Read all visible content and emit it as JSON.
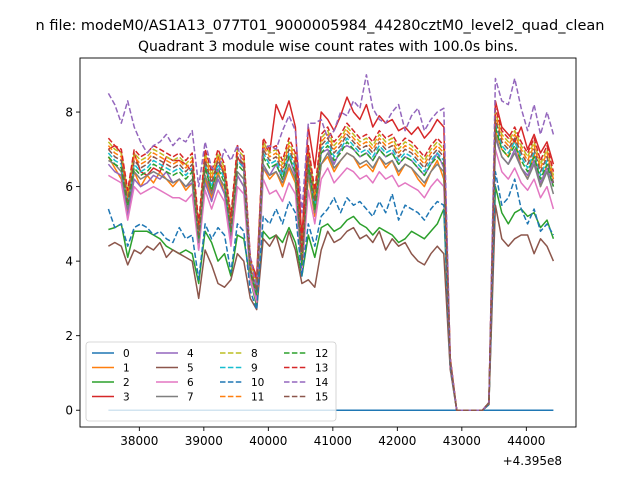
{
  "figure": {
    "suptitle": "n file: modeM0/AS1A13_077T01_9000005984_44280cztM0_level2_quad_clean",
    "title": "Quadrant 3 module wise count rates with 100.0s bins.",
    "offset_label": "+4.395e8"
  },
  "chart_data": {
    "type": "line",
    "title": "Quadrant 3 module wise count rates with 100.0s bins.",
    "xlabel": "",
    "ylabel": "",
    "x_offset": 439500000,
    "xlim": [
      37080,
      44770
    ],
    "ylim": [
      -0.45,
      9.45
    ],
    "x_ticks": [
      38000,
      39000,
      40000,
      41000,
      42000,
      43000,
      44000
    ],
    "y_ticks": [
      0,
      2,
      4,
      6,
      8
    ],
    "grid": false,
    "legend": {
      "placement": "lower-left",
      "columns": 4
    },
    "x_start": 37520,
    "x_step": 100,
    "series": [
      {
        "name": "0",
        "color": "#1f77b4",
        "dash": "solid",
        "values": [
          0,
          0,
          0,
          0,
          0,
          0,
          0,
          0,
          0,
          0,
          0,
          0,
          0,
          0,
          0,
          0,
          0,
          0,
          0,
          0,
          0,
          0,
          0,
          0,
          0,
          0,
          0,
          0,
          0,
          0,
          0,
          0,
          0,
          0,
          0,
          0,
          0,
          0,
          0,
          0,
          0,
          0,
          0,
          0,
          0,
          0,
          0,
          0,
          0,
          0,
          0,
          0,
          0,
          0,
          0,
          0,
          0,
          0,
          0,
          0,
          0,
          0,
          0,
          0,
          0,
          0,
          0,
          0,
          0,
          0
        ]
      },
      {
        "name": "1",
        "color": "#ff7f0e",
        "dash": "solid",
        "values": [
          6.8,
          6.5,
          6.2,
          5.3,
          6.4,
          6.0,
          6.3,
          6.1,
          6.4,
          6.2,
          6.0,
          6.2,
          5.9,
          6.1,
          4.4,
          6.2,
          5.7,
          6.4,
          5.8,
          4.7,
          6.3,
          6.0,
          3.6,
          3.0,
          6.5,
          6.2,
          6.4,
          6.0,
          6.5,
          6.1,
          3.9,
          6.3,
          5.2,
          6.6,
          6.8,
          6.4,
          6.7,
          6.9,
          6.8,
          6.5,
          6.6,
          6.4,
          6.8,
          6.5,
          6.7,
          6.3,
          6.6,
          6.5,
          6.2,
          6.0,
          6.4,
          6.7,
          6.2,
          1.3,
          0,
          0,
          0,
          0,
          0,
          0.2,
          7.5,
          7.0,
          6.8,
          7.3,
          6.5,
          6.2,
          6.9,
          6.0,
          6.6,
          6.3
        ]
      },
      {
        "name": "2",
        "color": "#2ca02c",
        "dash": "solid",
        "values": [
          4.85,
          4.9,
          5.0,
          4.1,
          4.8,
          4.8,
          4.8,
          4.7,
          4.6,
          4.4,
          4.3,
          4.2,
          4.3,
          4.2,
          3.4,
          4.8,
          4.5,
          4.0,
          4.2,
          3.6,
          4.7,
          4.6,
          3.5,
          2.8,
          4.8,
          4.6,
          4.7,
          4.5,
          4.9,
          4.5,
          3.6,
          4.7,
          4.1,
          4.9,
          5.0,
          4.8,
          4.9,
          5.1,
          5.2,
          5.0,
          4.9,
          4.7,
          4.9,
          4.8,
          4.7,
          4.5,
          4.6,
          4.8,
          4.7,
          4.6,
          4.8,
          5.0,
          5.4,
          1.2,
          0,
          0,
          0,
          0,
          0,
          0.15,
          6.0,
          5.3,
          5.0,
          5.3,
          5.4,
          5.2,
          5.3,
          4.9,
          5.1,
          4.6
        ]
      },
      {
        "name": "3",
        "color": "#d62728",
        "dash": "solid",
        "values": [
          7.0,
          7.1,
          6.9,
          5.8,
          6.9,
          6.4,
          6.3,
          6.5,
          6.4,
          6.8,
          6.7,
          6.7,
          6.6,
          6.4,
          4.6,
          6.6,
          5.8,
          6.8,
          6.3,
          5.0,
          6.8,
          6.5,
          4.0,
          3.6,
          7.2,
          6.9,
          8.2,
          7.8,
          8.3,
          7.6,
          4.6,
          7.6,
          6.5,
          8.0,
          7.8,
          7.5,
          7.9,
          8.4,
          8.0,
          7.8,
          8.2,
          7.6,
          7.9,
          7.7,
          7.8,
          7.5,
          7.6,
          7.4,
          7.6,
          7.3,
          7.5,
          7.8,
          7.6,
          1.4,
          0,
          0,
          0,
          0,
          0,
          0.2,
          8.3,
          7.6,
          7.4,
          7.2,
          7.6,
          7.0,
          7.4,
          6.9,
          7.2,
          6.6
        ]
      },
      {
        "name": "4",
        "color": "#9467bd",
        "dash": "solid",
        "values": [
          6.6,
          6.4,
          6.3,
          5.2,
          6.2,
          6.0,
          6.1,
          6.3,
          6.2,
          6.4,
          6.1,
          6.2,
          6.0,
          6.1,
          4.3,
          6.1,
          5.6,
          6.2,
          5.8,
          4.6,
          6.3,
          6.0,
          3.5,
          3.0,
          6.5,
          6.3,
          6.6,
          6.2,
          6.8,
          6.3,
          3.8,
          6.5,
          5.4,
          6.9,
          7.0,
          6.6,
          7.0,
          7.1,
          7.0,
          6.8,
          6.9,
          6.7,
          7.0,
          6.8,
          6.9,
          6.6,
          6.8,
          6.7,
          6.5,
          6.3,
          6.6,
          6.9,
          6.5,
          1.3,
          0,
          0,
          0,
          0,
          0,
          0.2,
          7.3,
          6.8,
          6.6,
          7.0,
          6.5,
          6.3,
          6.7,
          6.1,
          6.5,
          6.0
        ]
      },
      {
        "name": "5",
        "color": "#8c564b",
        "dash": "solid",
        "values": [
          4.4,
          4.5,
          4.4,
          3.9,
          4.3,
          4.2,
          4.4,
          4.3,
          4.5,
          4.1,
          4.3,
          4.2,
          4.1,
          4.0,
          3.0,
          4.3,
          3.9,
          3.4,
          3.3,
          3.5,
          4.2,
          4.0,
          3.0,
          2.7,
          4.6,
          4.4,
          4.7,
          4.1,
          4.8,
          4.3,
          3.4,
          3.5,
          3.3,
          4.3,
          4.8,
          4.5,
          4.6,
          4.8,
          4.9,
          4.6,
          4.7,
          4.5,
          4.8,
          4.3,
          4.6,
          4.4,
          4.5,
          4.2,
          4.0,
          3.9,
          4.2,
          4.4,
          4.2,
          1.1,
          0,
          0,
          0,
          0,
          0,
          0.15,
          5.5,
          4.6,
          4.4,
          4.6,
          4.7,
          4.7,
          4.2,
          4.6,
          4.4,
          4.0
        ]
      },
      {
        "name": "6",
        "color": "#e377c2",
        "dash": "solid",
        "values": [
          6.3,
          6.2,
          6.1,
          5.1,
          6.0,
          5.8,
          5.9,
          6.0,
          5.9,
          5.8,
          5.7,
          5.7,
          5.6,
          5.8,
          4.3,
          5.9,
          5.4,
          5.9,
          5.6,
          4.4,
          6.0,
          5.8,
          3.5,
          2.9,
          6.2,
          5.8,
          5.9,
          5.6,
          6.1,
          5.8,
          3.7,
          5.9,
          5.0,
          6.2,
          6.5,
          6.1,
          6.3,
          6.5,
          6.4,
          6.2,
          6.3,
          6.1,
          6.4,
          6.2,
          6.3,
          6.0,
          6.1,
          6.0,
          5.9,
          5.7,
          6.0,
          6.2,
          6.0,
          1.2,
          0,
          0,
          0,
          0,
          0,
          0.2,
          7.0,
          6.4,
          6.2,
          6.5,
          6.1,
          5.9,
          6.2,
          5.7,
          6.0,
          5.4
        ]
      },
      {
        "name": "7",
        "color": "#7f7f7f",
        "dash": "solid",
        "values": [
          6.7,
          6.6,
          6.4,
          5.4,
          6.4,
          6.2,
          6.3,
          6.4,
          6.3,
          6.2,
          6.1,
          6.2,
          6.0,
          6.2,
          4.5,
          6.3,
          5.8,
          6.3,
          6.0,
          4.7,
          6.4,
          6.2,
          3.7,
          3.1,
          6.6,
          6.3,
          6.4,
          6.1,
          6.6,
          6.2,
          3.9,
          6.4,
          5.3,
          6.6,
          6.9,
          6.5,
          6.7,
          6.9,
          6.8,
          6.6,
          6.7,
          6.5,
          6.8,
          6.6,
          6.7,
          6.4,
          6.6,
          6.5,
          6.3,
          6.1,
          6.4,
          6.6,
          6.4,
          1.3,
          0,
          0,
          0,
          0,
          0,
          0.2,
          7.4,
          6.8,
          6.6,
          6.9,
          6.5,
          6.2,
          6.6,
          6.0,
          6.4,
          5.8
        ]
      },
      {
        "name": "8",
        "color": "#bcbd22",
        "dash": "dashed",
        "values": [
          7.2,
          7.0,
          6.9,
          5.8,
          6.9,
          6.7,
          6.8,
          7.0,
          6.9,
          6.8,
          6.7,
          6.8,
          6.6,
          6.8,
          4.9,
          6.9,
          6.3,
          6.9,
          6.5,
          5.1,
          7.0,
          6.8,
          4.0,
          3.4,
          7.2,
          6.9,
          7.0,
          6.6,
          7.2,
          6.8,
          4.2,
          7.0,
          5.8,
          7.3,
          7.5,
          7.1,
          7.3,
          7.6,
          7.4,
          7.2,
          7.3,
          7.1,
          7.4,
          7.2,
          7.3,
          7.0,
          7.2,
          7.1,
          6.9,
          6.7,
          7.0,
          7.2,
          7.0,
          1.4,
          0,
          0,
          0,
          0,
          0,
          0.2,
          8.0,
          7.4,
          7.2,
          7.5,
          7.1,
          6.8,
          7.2,
          6.6,
          7.0,
          6.3
        ]
      },
      {
        "name": "9",
        "color": "#17becf",
        "dash": "dashed",
        "values": [
          6.9,
          6.7,
          6.6,
          5.6,
          6.6,
          6.4,
          6.5,
          6.7,
          6.6,
          6.5,
          6.4,
          6.5,
          6.3,
          6.5,
          4.7,
          6.6,
          6.0,
          6.6,
          6.2,
          4.9,
          6.7,
          6.5,
          3.8,
          3.2,
          6.9,
          6.6,
          6.7,
          6.3,
          6.9,
          6.5,
          4.0,
          6.7,
          5.5,
          7.0,
          7.2,
          6.8,
          7.0,
          7.3,
          7.1,
          6.9,
          7.0,
          6.8,
          7.1,
          6.9,
          7.0,
          6.7,
          6.9,
          6.8,
          6.6,
          6.4,
          6.7,
          6.9,
          6.7,
          1.3,
          0,
          0,
          0,
          0,
          0,
          0.2,
          7.7,
          7.1,
          6.9,
          7.2,
          6.8,
          6.5,
          6.9,
          6.3,
          6.7,
          6.1
        ]
      },
      {
        "name": "10",
        "color": "#1f77b4",
        "dash": "dashed",
        "values": [
          5.4,
          4.9,
          5.0,
          4.4,
          4.9,
          5.0,
          4.9,
          4.7,
          4.8,
          4.6,
          4.5,
          4.9,
          4.6,
          4.7,
          3.5,
          5.0,
          4.6,
          4.9,
          4.7,
          3.7,
          5.0,
          4.8,
          3.2,
          2.7,
          5.2,
          5.0,
          5.4,
          5.0,
          5.6,
          5.3,
          3.6,
          5.0,
          4.4,
          5.2,
          5.4,
          5.7,
          5.3,
          5.7,
          5.5,
          5.6,
          5.4,
          5.2,
          5.6,
          5.3,
          5.8,
          5.1,
          5.5,
          5.4,
          5.3,
          5.1,
          5.4,
          5.6,
          5.5,
          1.2,
          0,
          0,
          0,
          0,
          0,
          0.15,
          6.4,
          5.5,
          5.7,
          6.2,
          5.4,
          5.0,
          5.4,
          4.8,
          5.0,
          4.7
        ]
      },
      {
        "name": "11",
        "color": "#ff7f0e",
        "dash": "dashed",
        "values": [
          7.1,
          6.9,
          6.8,
          5.7,
          6.8,
          6.6,
          6.7,
          6.9,
          6.8,
          6.7,
          6.6,
          6.7,
          6.5,
          6.7,
          4.8,
          6.8,
          6.2,
          6.8,
          6.4,
          5.0,
          6.9,
          6.7,
          3.9,
          3.3,
          7.1,
          6.8,
          6.9,
          6.5,
          7.1,
          6.7,
          4.1,
          6.9,
          5.7,
          7.2,
          7.4,
          7.0,
          7.2,
          7.5,
          7.3,
          7.1,
          7.2,
          7.0,
          7.3,
          7.1,
          7.2,
          6.9,
          7.1,
          7.0,
          6.8,
          6.6,
          6.9,
          7.1,
          6.9,
          1.4,
          0,
          0,
          0,
          0,
          0,
          0.2,
          7.9,
          7.3,
          7.1,
          7.4,
          7.0,
          6.7,
          7.1,
          6.5,
          6.9,
          6.2
        ]
      },
      {
        "name": "12",
        "color": "#2ca02c",
        "dash": "dashed",
        "values": [
          6.8,
          6.6,
          6.5,
          5.5,
          6.5,
          6.3,
          6.4,
          6.6,
          6.5,
          6.4,
          6.3,
          6.4,
          6.2,
          6.4,
          4.6,
          6.5,
          5.9,
          6.5,
          6.1,
          4.8,
          6.6,
          6.4,
          3.7,
          3.1,
          6.8,
          6.5,
          6.6,
          6.2,
          6.8,
          6.4,
          3.9,
          6.6,
          5.4,
          6.9,
          7.1,
          6.7,
          6.9,
          7.2,
          7.0,
          6.8,
          6.9,
          6.7,
          7.0,
          6.8,
          6.9,
          6.6,
          6.8,
          6.7,
          6.5,
          6.3,
          6.6,
          6.8,
          6.6,
          1.3,
          0,
          0,
          0,
          0,
          0,
          0.2,
          7.6,
          7.0,
          6.8,
          7.1,
          6.7,
          6.4,
          6.8,
          6.2,
          6.6,
          6.0
        ]
      },
      {
        "name": "13",
        "color": "#d62728",
        "dash": "dashed",
        "values": [
          7.3,
          7.1,
          7.0,
          5.9,
          7.0,
          6.8,
          6.9,
          7.1,
          7.0,
          6.9,
          6.8,
          6.9,
          6.7,
          6.9,
          5.0,
          7.0,
          6.4,
          7.0,
          6.6,
          5.2,
          7.1,
          6.9,
          4.1,
          3.5,
          7.3,
          7.0,
          7.1,
          6.7,
          7.3,
          6.9,
          4.3,
          7.1,
          5.9,
          7.4,
          7.6,
          7.2,
          7.4,
          7.7,
          7.5,
          7.3,
          7.4,
          7.2,
          7.5,
          7.3,
          7.4,
          7.1,
          7.3,
          7.2,
          7.0,
          6.8,
          7.1,
          7.3,
          7.1,
          1.4,
          0,
          0,
          0,
          0,
          0,
          0.2,
          8.1,
          7.5,
          7.3,
          7.6,
          7.2,
          6.9,
          7.3,
          6.7,
          7.1,
          6.4
        ]
      },
      {
        "name": "14",
        "color": "#9467bd",
        "dash": "dashed",
        "values": [
          8.5,
          8.2,
          7.7,
          8.3,
          7.6,
          7.2,
          6.9,
          7.1,
          7.2,
          7.4,
          7.1,
          7.3,
          7.2,
          7.5,
          6.0,
          7.2,
          6.5,
          6.4,
          7.0,
          6.7,
          7.1,
          6.5,
          4.1,
          3.3,
          7.0,
          7.1,
          7.0,
          7.5,
          7.9,
          7.5,
          5.3,
          7.7,
          7.7,
          7.8,
          7.3,
          7.5,
          8.0,
          7.9,
          8.3,
          8.1,
          9.0,
          8.1,
          7.8,
          7.7,
          8.0,
          8.2,
          7.5,
          7.9,
          8.1,
          7.5,
          7.8,
          8.0,
          8.1,
          1.4,
          0,
          0,
          0,
          0,
          0,
          0.2,
          8.9,
          8.3,
          8.2,
          8.9,
          8.1,
          7.5,
          8.2,
          7.4,
          8.0,
          7.4
        ]
      },
      {
        "name": "15",
        "color": "#8c564b",
        "dash": "dashed",
        "values": [
          7.0,
          6.8,
          6.7,
          5.6,
          6.7,
          6.5,
          6.6,
          6.8,
          6.7,
          6.6,
          6.5,
          6.6,
          6.4,
          6.6,
          4.7,
          6.7,
          6.1,
          6.7,
          6.3,
          4.9,
          6.8,
          6.6,
          3.8,
          3.2,
          7.0,
          6.7,
          6.8,
          6.4,
          7.0,
          6.6,
          4.0,
          6.8,
          5.6,
          7.1,
          7.3,
          6.9,
          7.1,
          7.4,
          7.2,
          7.0,
          7.1,
          6.9,
          7.2,
          7.0,
          7.1,
          6.8,
          7.0,
          6.9,
          6.7,
          6.5,
          6.8,
          7.0,
          6.8,
          1.3,
          0,
          0,
          0,
          0,
          0,
          0.2,
          7.8,
          7.2,
          7.0,
          7.3,
          6.9,
          6.6,
          7.0,
          6.4,
          6.8,
          6.1
        ]
      }
    ]
  }
}
